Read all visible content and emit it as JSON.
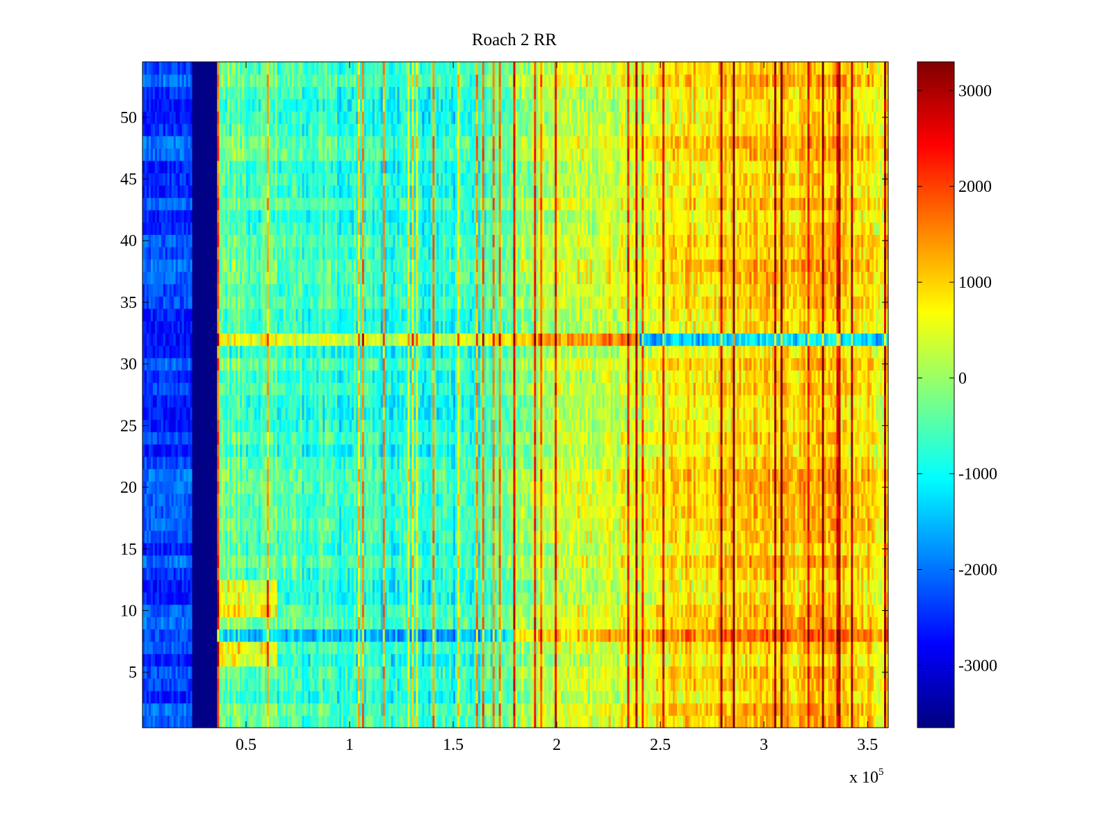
{
  "chart_data": {
    "type": "heatmap",
    "title": "Roach 2 RR",
    "xlabel": "",
    "ylabel": "",
    "x_exponent_label": "x 10",
    "x_exponent": "5",
    "xlim": [
      0,
      3.6
    ],
    "ylim": [
      0.5,
      54.5
    ],
    "rows": 54,
    "columns": 360,
    "xticks": [
      {
        "value": 0.5,
        "label": "0.5"
      },
      {
        "value": 1,
        "label": "1"
      },
      {
        "value": 1.5,
        "label": "1.5"
      },
      {
        "value": 2,
        "label": "2"
      },
      {
        "value": 2.5,
        "label": "2.5"
      },
      {
        "value": 3,
        "label": "3"
      },
      {
        "value": 3.5,
        "label": "3.5"
      }
    ],
    "yticks": [
      {
        "value": 5,
        "label": "5"
      },
      {
        "value": 10,
        "label": "10"
      },
      {
        "value": 15,
        "label": "15"
      },
      {
        "value": 20,
        "label": "20"
      },
      {
        "value": 25,
        "label": "25"
      },
      {
        "value": 30,
        "label": "30"
      },
      {
        "value": 35,
        "label": "35"
      },
      {
        "value": 40,
        "label": "40"
      },
      {
        "value": 45,
        "label": "45"
      },
      {
        "value": 50,
        "label": "50"
      }
    ],
    "colorbar": {
      "colormap": "jet",
      "clim": [
        -3650,
        3300
      ],
      "ticks": [
        {
          "value": 3000,
          "label": "3000"
        },
        {
          "value": 2000,
          "label": "2000"
        },
        {
          "value": 1000,
          "label": "1000"
        },
        {
          "value": 0,
          "label": "0"
        },
        {
          "value": -1000,
          "label": "-1000"
        },
        {
          "value": -2000,
          "label": "-2000"
        },
        {
          "value": -3000,
          "label": "-3000"
        }
      ]
    },
    "description_model": {
      "dead_band_x": [
        0.24,
        0.36
      ],
      "dead_band_value": -3600,
      "left_region_x": [
        0,
        0.24
      ],
      "left_region_value": -2300,
      "trend": [
        {
          "x": 0.36,
          "value": -300
        },
        {
          "x": 0.8,
          "value": -600
        },
        {
          "x": 1.3,
          "value": -900
        },
        {
          "x": 1.65,
          "value": -700
        },
        {
          "x": 1.8,
          "value": 100
        },
        {
          "x": 2.3,
          "value": 500
        },
        {
          "x": 2.7,
          "value": 900
        },
        {
          "x": 3.1,
          "value": 1100
        },
        {
          "x": 3.6,
          "value": 900
        }
      ],
      "row_anomalies": [
        {
          "row": 32,
          "note": "warm at low x, cold after 2.4"
        },
        {
          "row": 8,
          "note": "cold at low x, warm at high x"
        },
        {
          "rows": [
            6,
            7,
            10,
            11,
            12
          ],
          "note": "warm near 0.4-0.6"
        }
      ]
    }
  }
}
